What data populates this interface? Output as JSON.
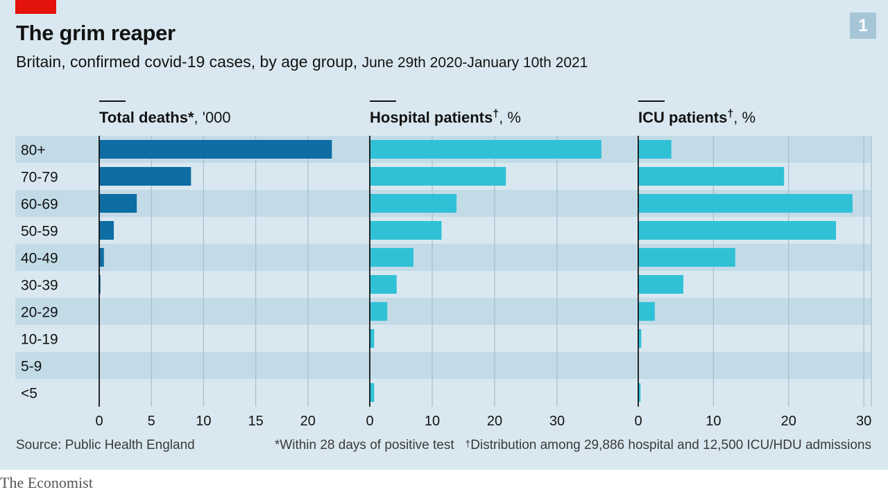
{
  "header": {
    "title": "The grim reaper",
    "subtitle_main": "Britain, confirmed covid-19 cases, by age group,",
    "subtitle_dates": "June 29th 2020-January 10th 2021",
    "badge": "1"
  },
  "footer": {
    "source": "Source: Public Health England",
    "note_deaths": "*Within 28 days of positive test",
    "note_dagger": "†",
    "note_distribution": "Distribution among 29,886 hospital and 12,500 ICU/HDU admissions"
  },
  "brand": "The Economist",
  "colors": {
    "background": "#d9e8f0",
    "band": "#c2dbe7",
    "gridline": "#a9c0cd",
    "deaths_bar": "#0e6da3",
    "patients_bar": "#31c1d6",
    "accent_red": "#e3120b",
    "badge": "#a6c6d8"
  },
  "chart_data": {
    "type": "bar",
    "orientation": "horizontal",
    "categories": [
      "80+",
      "70-79",
      "60-69",
      "50-59",
      "40-49",
      "30-39",
      "20-29",
      "10-19",
      "5-9",
      "<5"
    ],
    "panels": [
      {
        "title_bold": "Total deaths*",
        "title_unit": ", '000",
        "xlim": [
          0,
          25
        ],
        "ticks": [
          0,
          5,
          10,
          15,
          20
        ],
        "values": [
          22.3,
          8.8,
          3.6,
          1.4,
          0.45,
          0.12,
          0.04,
          0.01,
          0.0,
          0.0
        ],
        "color": "#0e6da3"
      },
      {
        "title_bold": "Hospital patients",
        "title_dagger": "†",
        "title_unit": ", %",
        "xlim": [
          0,
          40
        ],
        "ticks": [
          0,
          10,
          20,
          30
        ],
        "values": [
          37.1,
          21.8,
          13.9,
          11.5,
          7.0,
          4.3,
          2.8,
          0.7,
          0.1,
          0.7
        ],
        "color": "#31c1d6"
      },
      {
        "title_bold": "ICU patients",
        "title_dagger": "†",
        "title_unit": ", %",
        "xlim": [
          0,
          31
        ],
        "ticks": [
          0,
          10,
          20,
          30
        ],
        "values": [
          4.4,
          19.4,
          28.5,
          26.3,
          12.9,
          6.0,
          2.2,
          0.4,
          0.0,
          0.3
        ],
        "color": "#31c1d6"
      }
    ]
  }
}
